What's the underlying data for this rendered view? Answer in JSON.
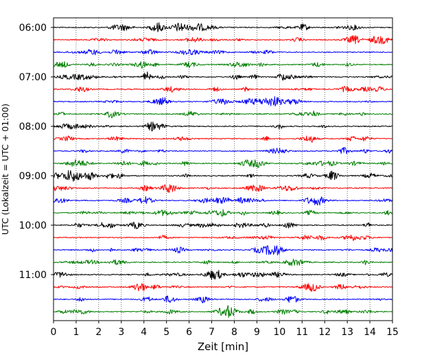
{
  "chart_data": {
    "type": "line",
    "title": "",
    "xlabel": "Zeit  [min]",
    "ylabel": "UTC (Lokalzeit = UTC + 01:00)",
    "xlim": [
      0,
      15
    ],
    "x_ticks": [
      0,
      1,
      2,
      3,
      4,
      5,
      6,
      7,
      8,
      9,
      10,
      11,
      12,
      13,
      14,
      15
    ],
    "x_tick_labels": [
      "0",
      "1",
      "2",
      "3",
      "4",
      "5",
      "6",
      "7",
      "8",
      "9",
      "10",
      "11",
      "12",
      "13",
      "14",
      "15"
    ],
    "y_ticks": [
      "06:00",
      "07:00",
      "08:00",
      "09:00",
      "10:00",
      "11:00"
    ],
    "trace_interval_min": 15,
    "start_time": "06:00",
    "end_time": "11:45",
    "grid": "vertical dotted",
    "color_cycle": [
      "#000000",
      "#ff0000",
      "#0000ff",
      "#008000"
    ],
    "traces": [
      "06:00",
      "06:15",
      "06:30",
      "06:45",
      "07:00",
      "07:15",
      "07:30",
      "07:45",
      "08:00",
      "08:15",
      "08:30",
      "08:45",
      "09:00",
      "09:15",
      "09:30",
      "09:45",
      "10:00",
      "10:15",
      "10:30",
      "10:45",
      "11:00",
      "11:15",
      "11:30",
      "11:45"
    ]
  }
}
